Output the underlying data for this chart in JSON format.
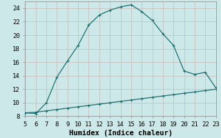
{
  "xlabel": "Humidex (Indice chaleur)",
  "background_color": "#cce8e8",
  "line_color": "#1a6e6e",
  "grid_color": "#c8b8b8",
  "x_main": [
    5,
    6,
    7,
    8,
    9,
    10,
    11,
    12,
    13,
    14,
    15,
    16,
    17,
    18,
    19,
    20,
    21,
    22,
    23
  ],
  "y_main": [
    8.5,
    8.4,
    10.0,
    13.8,
    16.2,
    18.5,
    21.5,
    23.0,
    23.7,
    24.2,
    24.5,
    23.5,
    22.2,
    20.2,
    18.5,
    14.7,
    14.2,
    14.5,
    12.2
  ],
  "x_linear": [
    5,
    6,
    7,
    8,
    9,
    10,
    11,
    12,
    13,
    14,
    15,
    16,
    17,
    18,
    19,
    20,
    21,
    22,
    23
  ],
  "y_linear": [
    8.5,
    8.6,
    8.8,
    9.0,
    9.2,
    9.4,
    9.6,
    9.8,
    10.0,
    10.2,
    10.4,
    10.6,
    10.8,
    11.0,
    11.2,
    11.4,
    11.6,
    11.8,
    12.0
  ],
  "xlim": [
    5,
    23
  ],
  "ylim": [
    8,
    25
  ],
  "xticks": [
    5,
    6,
    7,
    8,
    9,
    10,
    11,
    12,
    13,
    14,
    15,
    16,
    17,
    18,
    19,
    20,
    21,
    22,
    23
  ],
  "yticks": [
    8,
    10,
    12,
    14,
    16,
    18,
    20,
    22,
    24
  ],
  "markersize": 3,
  "linewidth": 0.9,
  "xlabel_fontsize": 7.5,
  "tick_fontsize": 6.5
}
